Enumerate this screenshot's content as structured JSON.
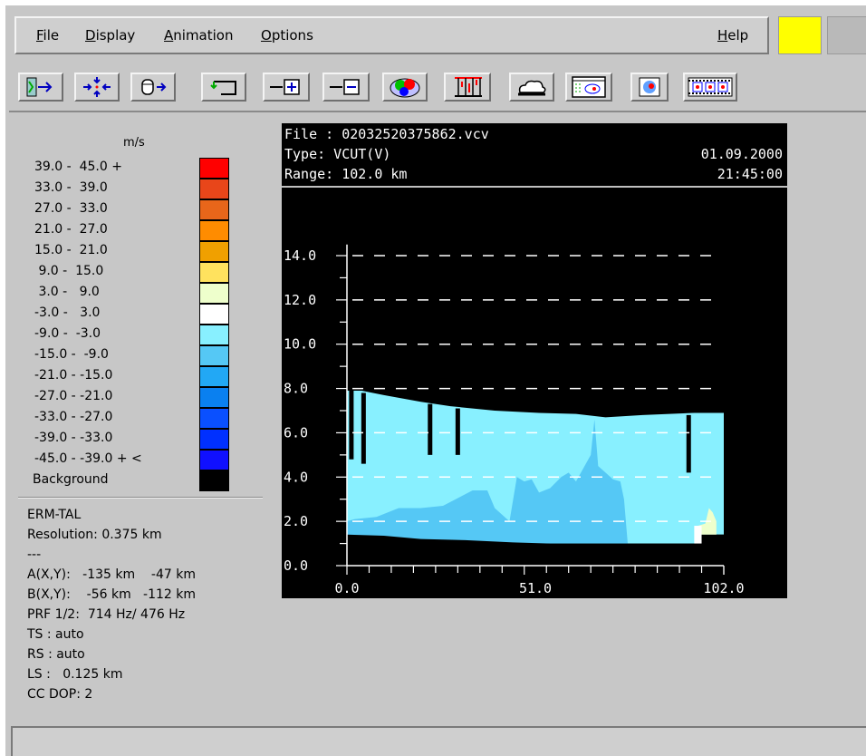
{
  "menu": {
    "file": "File",
    "display": "Display",
    "animation": "Animation",
    "options": "Options",
    "help": "Help"
  },
  "status_colors": {
    "indicator": "#ffff00"
  },
  "toolbar": {
    "icons": [
      "exit-door-icon",
      "zoom-in-arrows-icon",
      "load-file-icon",
      "return-arrow-icon",
      "zoom-plus-icon",
      "zoom-minus-icon",
      "color-blobs-icon",
      "vertical-cut-icon",
      "cloud-icon",
      "map-window-icon",
      "radar-overlay-icon",
      "film-strip-icon"
    ]
  },
  "legend": {
    "unit": "m/s",
    "entries": [
      {
        "label": "39.0 -  45.0 +",
        "color": "#ff0000"
      },
      {
        "label": "33.0 -  39.0",
        "color": "#e8461a"
      },
      {
        "label": "27.0 -  33.0",
        "color": "#e8661a"
      },
      {
        "label": "21.0 -  27.0",
        "color": "#ff8c00"
      },
      {
        "label": "15.0 -  21.0",
        "color": "#f0a000"
      },
      {
        "label": " 9.0 -  15.0",
        "color": "#ffe25e"
      },
      {
        "label": " 3.0 -   9.0",
        "color": "#eeffcc"
      },
      {
        "label": "-3.0 -   3.0",
        "color": "#ffffff"
      },
      {
        "label": "-9.0 -  -3.0",
        "color": "#88f0ff"
      },
      {
        "label": "-15.0 -  -9.0",
        "color": "#55c8f5"
      },
      {
        "label": "-21.0 - -15.0",
        "color": "#22a8f5"
      },
      {
        "label": "-27.0 - -21.0",
        "color": "#0a80f0"
      },
      {
        "label": "-33.0 - -27.0",
        "color": "#0a50ff"
      },
      {
        "label": "-39.0 - -33.0",
        "color": "#0030ff"
      },
      {
        "label": "-45.0 - -39.0 + <",
        "color": "#1010ff"
      },
      {
        "label": "Background",
        "color": "#000000"
      }
    ]
  },
  "info": {
    "station": "ERM-TAL",
    "resolution": "Resolution: 0.375 km",
    "separator": "---",
    "point_a": "A(X,Y):   -135 km    -47 km",
    "point_b": "B(X,Y):    -56 km   -112 km",
    "prf": "PRF 1/2:  714 Hz/ 476 Hz",
    "ts": "TS : auto",
    "rs": "RS : auto",
    "ls": "LS :   0.125 km",
    "cc_dop": "CC DOP: 2"
  },
  "display": {
    "file_line": "File : 02032520375862.vcv",
    "type_line": "Type: VCUT(V)",
    "range_line": "Range:  102.0 km",
    "date": "01.09.2000",
    "time": "21:45:00"
  },
  "chart_data": {
    "type": "heatmap",
    "x_tick_labels": [
      "0.0",
      "51.0",
      "102.0"
    ],
    "y_tick_labels": [
      "0.0",
      "2.0",
      "4.0",
      "6.0",
      "8.0",
      "10.0",
      "12.0",
      "14.0"
    ],
    "xlim": [
      0,
      102
    ],
    "ylim": [
      0,
      14
    ],
    "grid": true,
    "top_profile": [
      [
        0,
        7.9
      ],
      [
        4,
        7.9
      ],
      [
        10,
        7.7
      ],
      [
        20,
        7.4
      ],
      [
        28,
        7.2
      ],
      [
        40,
        7.0
      ],
      [
        52,
        6.9
      ],
      [
        62,
        6.85
      ],
      [
        70,
        6.7
      ],
      [
        80,
        6.8
      ],
      [
        94,
        6.9
      ],
      [
        102,
        6.9
      ]
    ],
    "ground_profile": [
      [
        0,
        1.4
      ],
      [
        10,
        1.35
      ],
      [
        20,
        1.2
      ],
      [
        32,
        1.15
      ],
      [
        45,
        1.05
      ],
      [
        55,
        1.0
      ],
      [
        94,
        1.0
      ],
      [
        96,
        1.4
      ],
      [
        102,
        1.4
      ]
    ],
    "dark_region": [
      [
        0,
        2.0
      ],
      [
        2,
        2.1
      ],
      [
        8,
        2.2
      ],
      [
        14,
        2.6
      ],
      [
        20,
        2.6
      ],
      [
        26,
        2.7
      ],
      [
        34,
        3.4
      ],
      [
        38,
        3.4
      ],
      [
        40,
        2.6
      ],
      [
        44,
        2.0
      ],
      [
        46,
        4.0
      ],
      [
        48,
        3.8
      ],
      [
        50,
        3.9
      ],
      [
        52,
        3.3
      ],
      [
        55,
        3.5
      ],
      [
        58,
        4.0
      ],
      [
        60,
        4.2
      ],
      [
        62,
        3.8
      ],
      [
        64,
        4.4
      ],
      [
        66,
        5.0
      ],
      [
        67,
        6.6
      ],
      [
        68,
        4.5
      ],
      [
        70,
        4.2
      ],
      [
        72,
        3.9
      ],
      [
        74,
        3.8
      ],
      [
        75,
        3.0
      ],
      [
        76,
        1.0
      ],
      [
        0,
        1.0
      ]
    ],
    "black_streaks": [
      [
        1.2,
        4.8,
        8.0
      ],
      [
        4.5,
        4.6,
        7.8
      ],
      [
        22.5,
        5.0,
        7.3
      ],
      [
        30,
        5.0,
        7.1
      ],
      [
        92.5,
        4.2,
        6.8
      ]
    ],
    "light_patch": [
      [
        95,
        1.4
      ],
      [
        95,
        1.8
      ],
      [
        97,
        1.9
      ],
      [
        98,
        2.6
      ],
      [
        99,
        2.4
      ],
      [
        100,
        2.0
      ],
      [
        100,
        1.4
      ]
    ],
    "white_patch": [
      [
        94,
        1.0
      ],
      [
        94,
        1.8
      ],
      [
        96,
        1.8
      ],
      [
        96,
        1.0
      ]
    ],
    "colors": {
      "main": "#88f0ff",
      "dark": "#55c8f5",
      "black": "#000000",
      "white": "#ffffff"
    }
  }
}
